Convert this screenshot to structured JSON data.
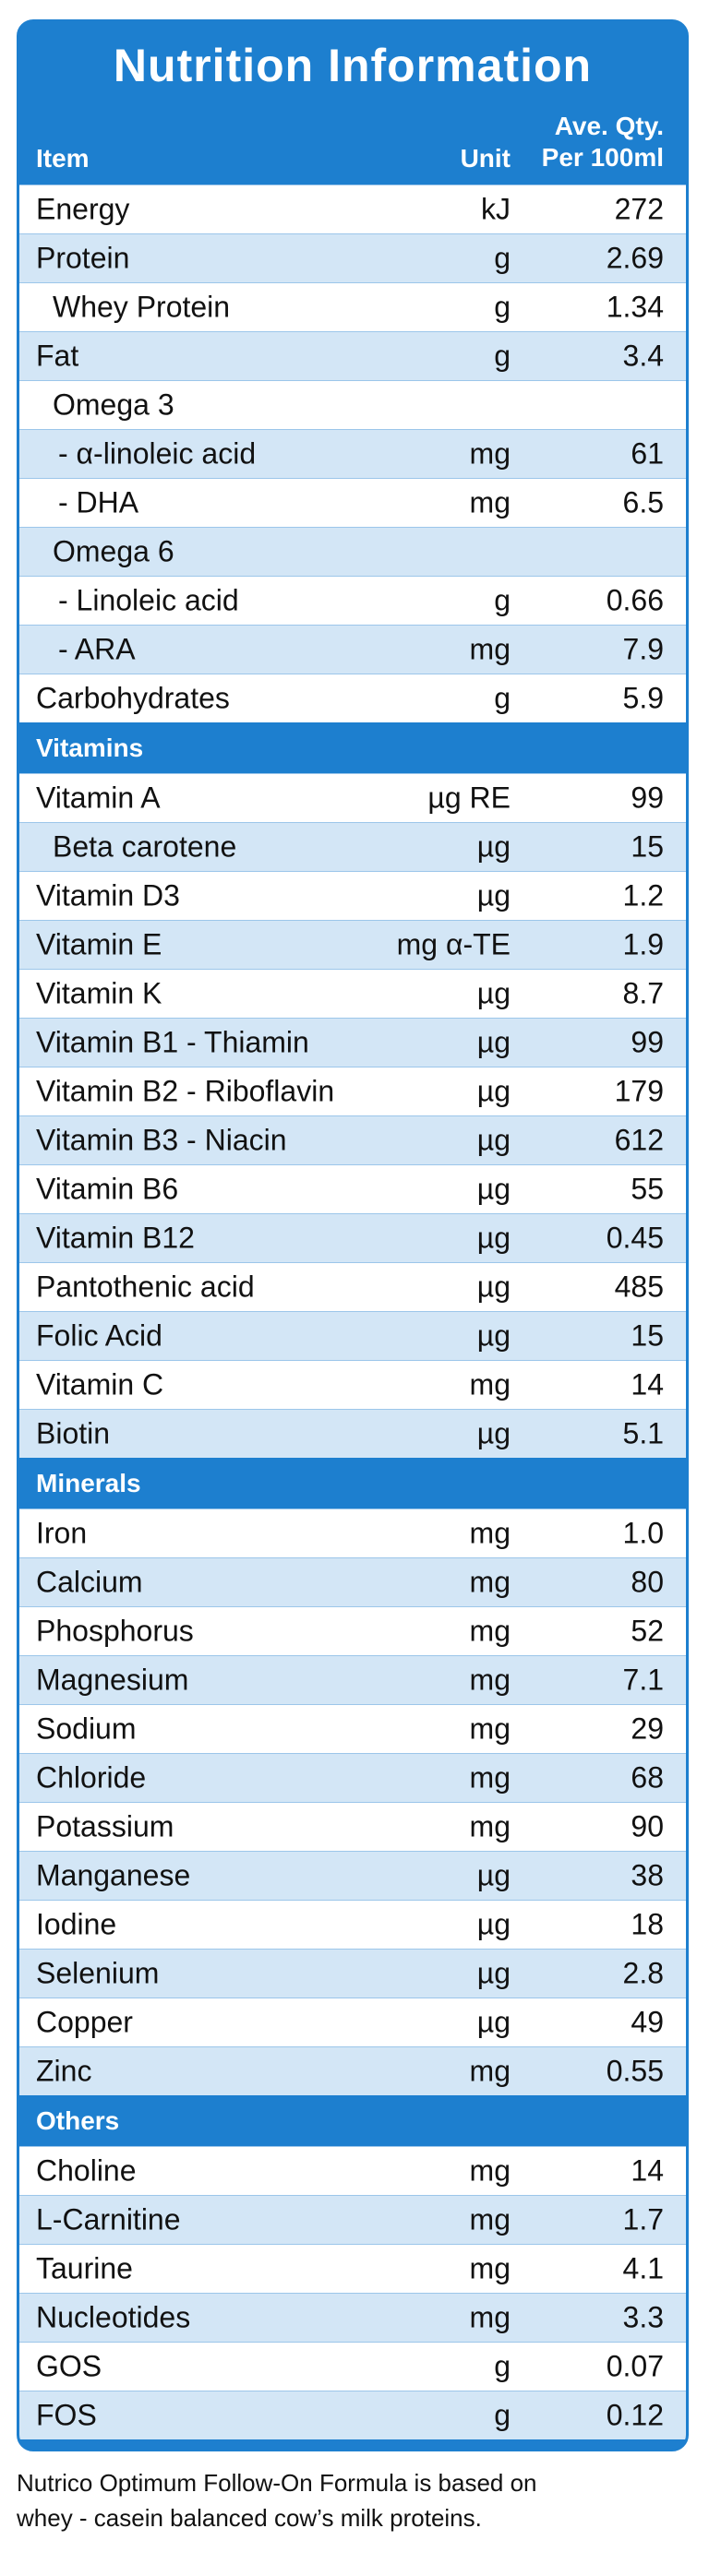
{
  "header": {
    "title": "Nutrition Information",
    "col_item": "Item",
    "col_unit": "Unit",
    "col_qty_line1": "Ave. Qty.",
    "col_qty_line2": "Per 100ml"
  },
  "sections": [
    {
      "rows": [
        [
          "Energy",
          "kJ",
          "272"
        ],
        [
          "Protein",
          "g",
          "2.69"
        ],
        [
          "Whey Protein",
          "g",
          "1.34"
        ],
        [
          "Fat",
          "g",
          "3.4"
        ],
        [
          "Omega 3",
          null,
          null
        ],
        [
          "- α-linoleic acid",
          "mg",
          "61"
        ],
        [
          "- DHA",
          "mg",
          "6.5"
        ],
        [
          "Omega 6",
          null,
          null
        ],
        [
          "- Linoleic acid",
          "g",
          "0.66"
        ],
        [
          "- ARA",
          "mg",
          "7.9"
        ],
        [
          "Carbohydrates",
          "g",
          "5.9"
        ]
      ]
    },
    {
      "title": "Vitamins",
      "rows": [
        [
          "Vitamin A",
          "µg RE",
          "99"
        ],
        [
          "Beta carotene",
          "µg",
          "15"
        ],
        [
          "Vitamin D3",
          "µg",
          "1.2"
        ],
        [
          "Vitamin E",
          "mg α-TE",
          "1.9"
        ],
        [
          "Vitamin K",
          "µg",
          "8.7"
        ],
        [
          "Vitamin B1 - Thiamin",
          "µg",
          "99"
        ],
        [
          "Vitamin B2 - Riboflavin",
          "µg",
          "179"
        ],
        [
          "Vitamin B3 - Niacin",
          "µg",
          "612"
        ],
        [
          "Vitamin B6",
          "µg",
          "55"
        ],
        [
          "Vitamin B12",
          "µg",
          "0.45"
        ],
        [
          "Pantothenic acid",
          "µg",
          "485"
        ],
        [
          "Folic Acid",
          "µg",
          "15"
        ],
        [
          "Vitamin C",
          "mg",
          "14"
        ],
        [
          "Biotin",
          "µg",
          "5.1"
        ]
      ]
    },
    {
      "title": "Minerals",
      "rows": [
        [
          "Iron",
          "mg",
          "1.0"
        ],
        [
          "Calcium",
          "mg",
          "80"
        ],
        [
          "Phosphorus",
          "mg",
          "52"
        ],
        [
          "Magnesium",
          "mg",
          "7.1"
        ],
        [
          "Sodium",
          "mg",
          "29"
        ],
        [
          "Chloride",
          "mg",
          "68"
        ],
        [
          "Potassium",
          "mg",
          "90"
        ],
        [
          "Manganese",
          "µg",
          "38"
        ],
        [
          "Iodine",
          "µg",
          "18"
        ],
        [
          "Selenium",
          "µg",
          "2.8"
        ],
        [
          "Copper",
          "µg",
          "49"
        ],
        [
          "Zinc",
          "mg",
          "0.55"
        ]
      ]
    },
    {
      "title": "Others",
      "rows": [
        [
          "Choline",
          "mg",
          "14"
        ],
        [
          "L-Carnitine",
          "mg",
          "1.7"
        ],
        [
          "Taurine",
          "mg",
          "4.1"
        ],
        [
          "Nucleotides",
          "mg",
          "3.3"
        ],
        [
          "GOS",
          "g",
          "0.07"
        ],
        [
          "FOS",
          "g",
          "0.12"
        ]
      ]
    }
  ],
  "footer": [
    "Nutrico Optimum Follow-On Formula is based on",
    "whey - casein balanced cow’s milk proteins."
  ]
}
